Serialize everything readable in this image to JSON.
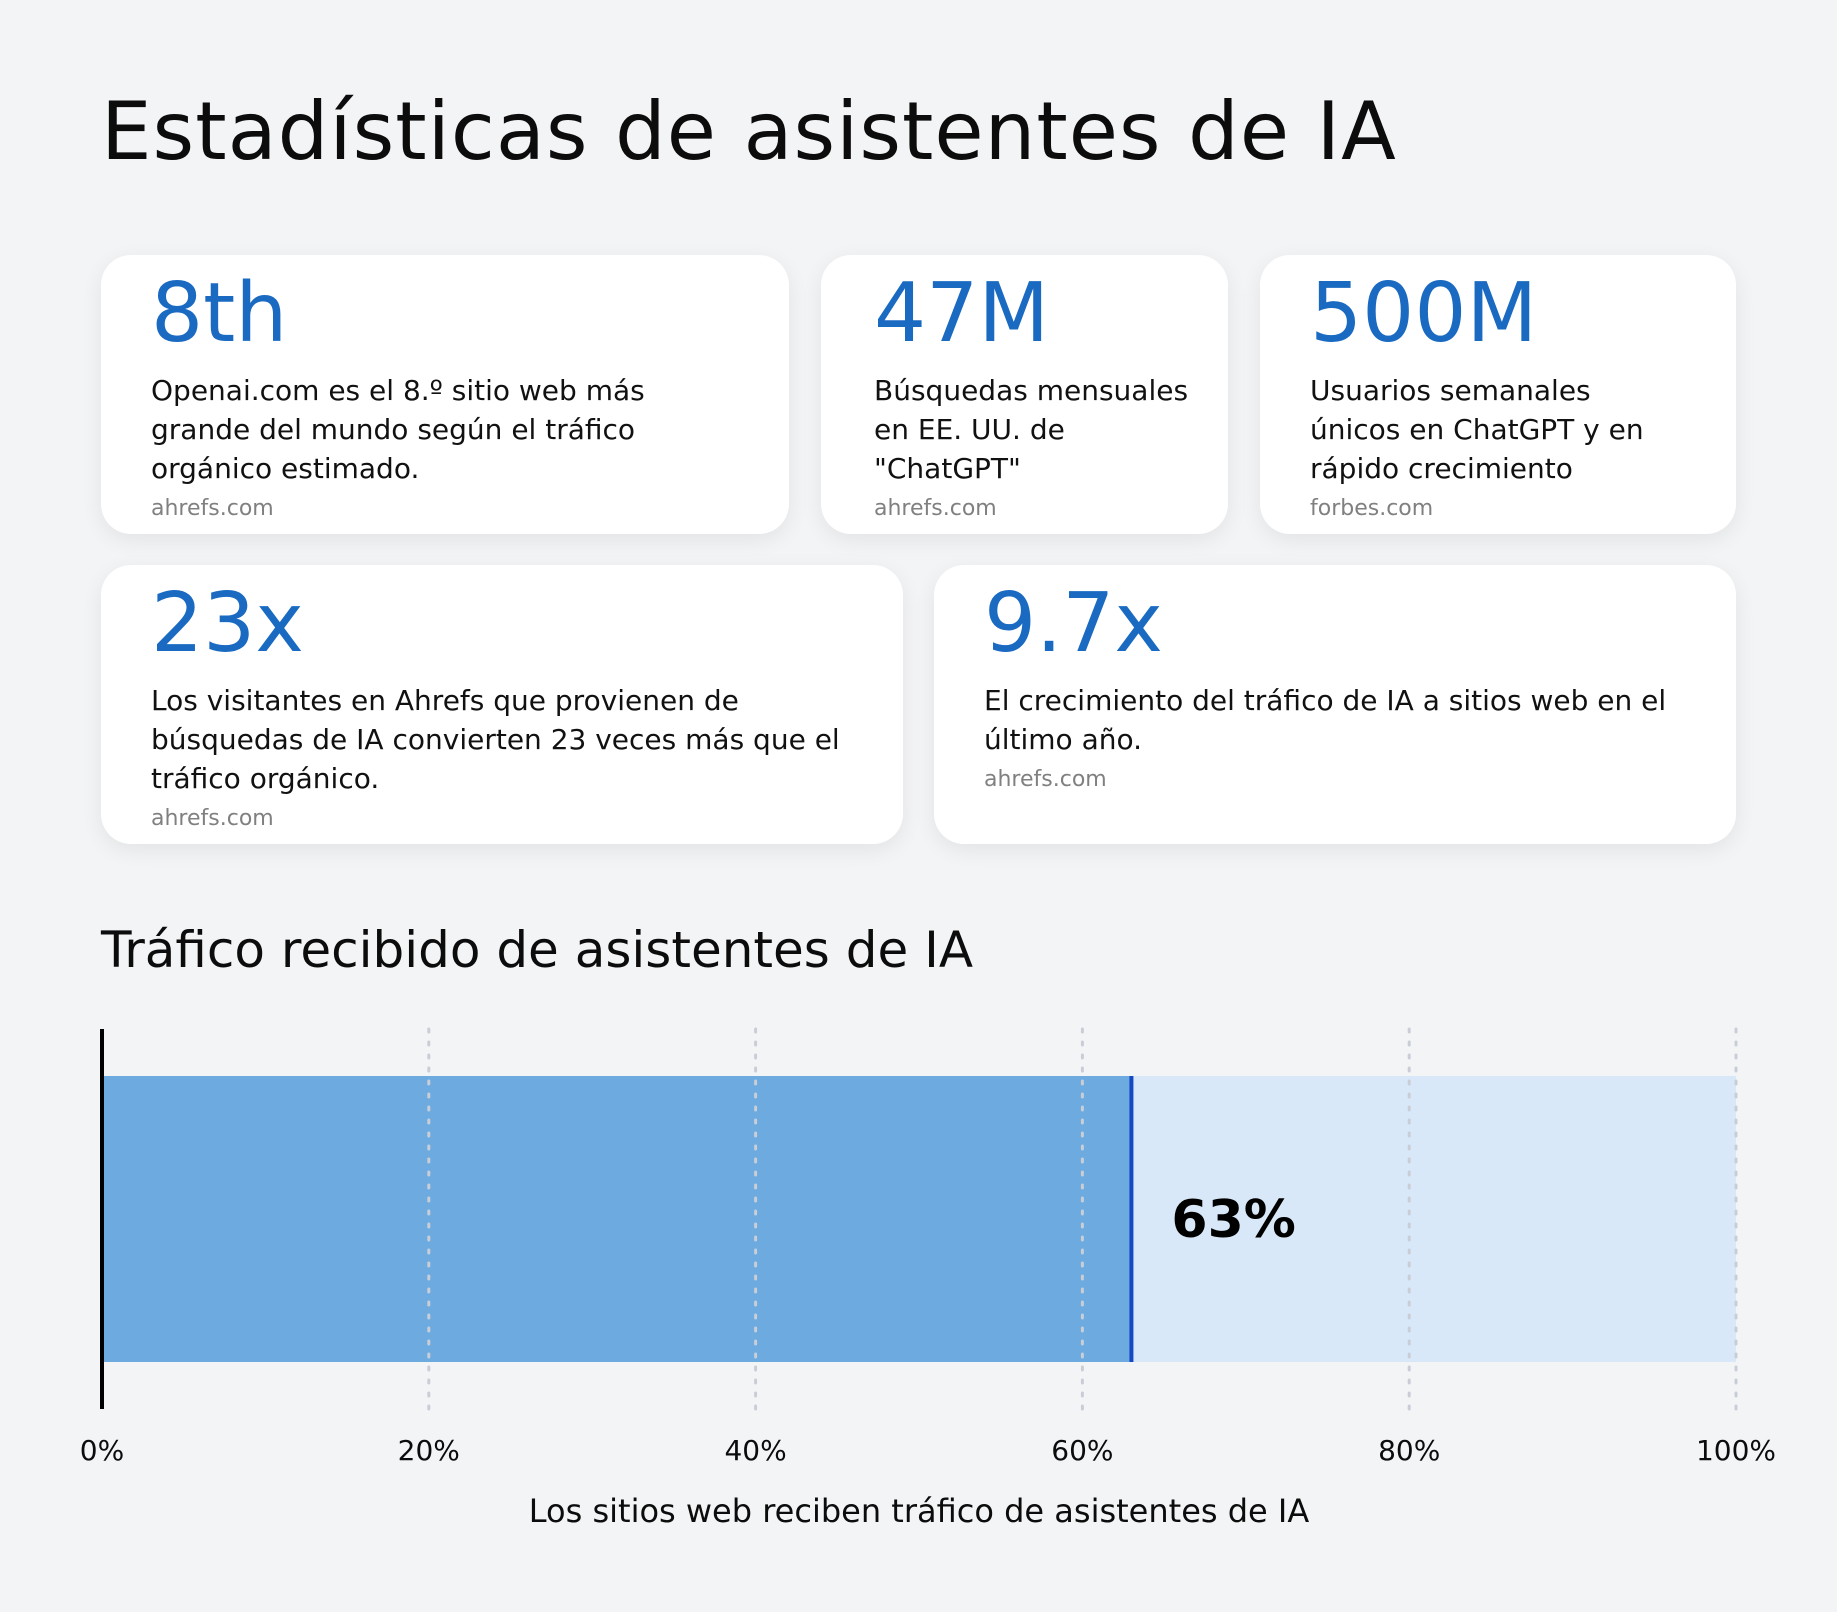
{
  "title": "Estadísticas de asistentes de IA",
  "stats": [
    {
      "value": "8th",
      "description": "Openai.com es el 8.º sitio web más grande del mundo según el tráfico orgánico estimado.",
      "source": "ahrefs.com"
    },
    {
      "value": "47M",
      "description": "Búsquedas mensuales en EE. UU. de \"ChatGPT\"",
      "source": "ahrefs.com"
    },
    {
      "value": "500M",
      "description": "Usuarios semanales únicos en ChatGPT y en rápido crecimiento",
      "source": "forbes.com"
    },
    {
      "value": "23x",
      "description": "Los visitantes en Ahrefs que provienen de búsquedas de IA convierten 23 veces más que el tráfico orgánico.",
      "source": "ahrefs.com"
    },
    {
      "value": "9.7x",
      "description": "El crecimiento del tráfico de IA a sitios web en el último año.",
      "source": "ahrefs.com"
    }
  ],
  "chart_data": {
    "type": "bar",
    "title": "Tráfico recibido de asistentes de IA",
    "xlabel": "Los sitios web reciben tráfico de asistentes de IA",
    "ylabel": "",
    "value": 63,
    "value_label": "63%",
    "xlim": [
      0,
      100
    ],
    "ticks": [
      0,
      20,
      40,
      60,
      80,
      100
    ],
    "tick_labels": [
      "0%",
      "20%",
      "40%",
      "60%",
      "80%",
      "100%"
    ],
    "grid": true,
    "colors": {
      "filled": "#6caae0",
      "remaining": "#d9e8f8",
      "marker": "#1549c4",
      "axis": "#000000",
      "grid": "#c9ced6"
    }
  },
  "colors": {
    "accent": "#1a6ac2",
    "background": "#f3f4f6",
    "card": "#ffffff",
    "source_text": "#808080"
  }
}
